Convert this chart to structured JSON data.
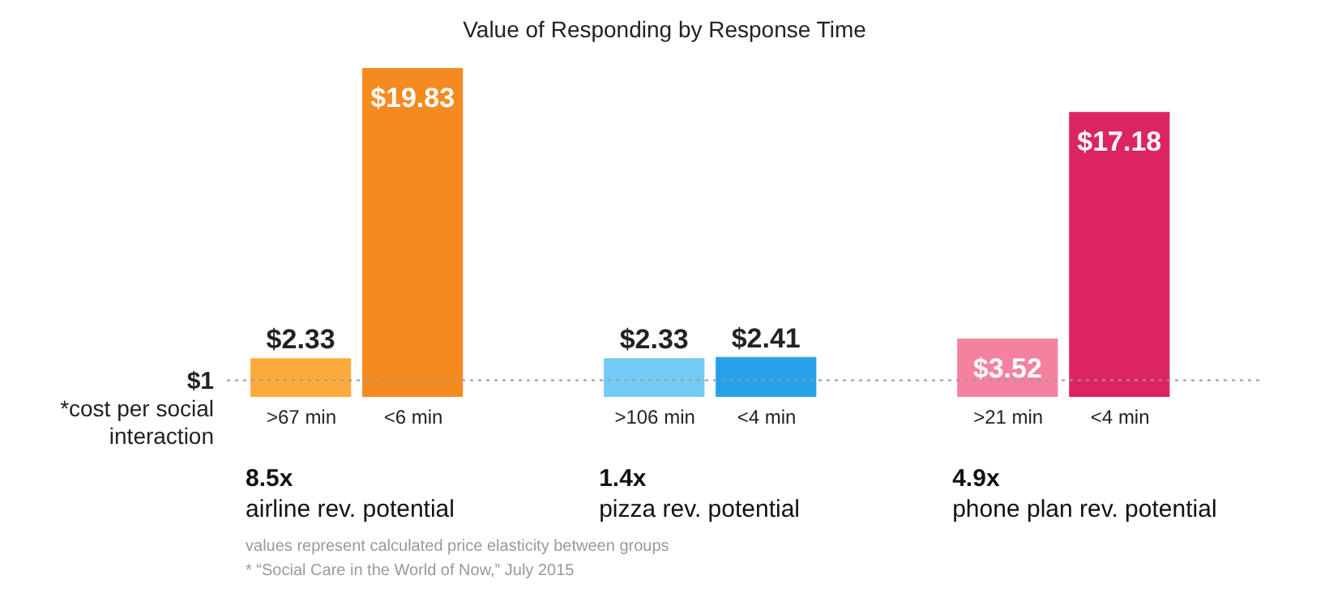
{
  "chart_data": {
    "type": "bar",
    "title": "Value of Responding by Response Time",
    "categories": [
      ">67 min",
      "<6 min",
      ">106 min",
      "<4 min",
      ">21 min",
      "<4 min"
    ],
    "values": [
      2.33,
      19.83,
      2.33,
      2.41,
      3.52,
      17.18
    ],
    "colors": [
      "#fbab3b",
      "#f58a21",
      "#71cbf4",
      "#28a1ea",
      "#f4829f",
      "#dc2560"
    ],
    "value_labels": [
      "$2.33",
      "$19.83",
      "$2.33",
      "$2.41",
      "$3.52",
      "$17.18"
    ],
    "ref_lines": [
      {
        "axis": "y",
        "value": 1,
        "label": "$1\n*cost per social\ninteraction",
        "color": "#999999",
        "line_style": "dotted"
      }
    ],
    "annotations": [
      "8.5x\nairline rev. potential",
      "1.4x\npizza rev. potential",
      "4.9x\nphone plan rev. potential",
      "values represent calculated price elasticity between groups",
      "* “Social Care in the World of Now,” July 2015"
    ]
  }
}
